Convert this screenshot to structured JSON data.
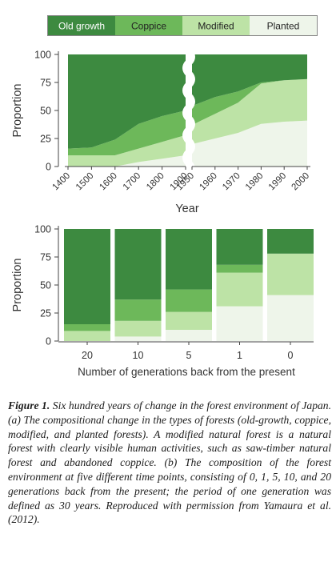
{
  "colors": {
    "old_growth": "#3d8a40",
    "coppice": "#6db85a",
    "modified": "#bde3a6",
    "planted": "#eef5ea",
    "axis": "#444444"
  },
  "legend": [
    "Old growth",
    "Coppice",
    "Modified",
    "Planted"
  ],
  "chart_data": [
    {
      "type": "area",
      "stacked": true,
      "x_left": [
        "1400",
        "1500",
        "1600",
        "1700",
        "1800",
        "1900"
      ],
      "x_right": [
        "1950",
        "1960",
        "1970",
        "1980",
        "1990",
        "2000"
      ],
      "axis_break": true,
      "xlabel": "Year",
      "ylabel": "Proportion",
      "ylim": [
        0,
        100
      ],
      "yticks": [
        0,
        25,
        50,
        75,
        100
      ],
      "series": [
        {
          "name": "Planted",
          "left": [
            0,
            0,
            0,
            4,
            7,
            10
          ],
          "right": [
            20,
            25,
            30,
            38,
            40,
            41
          ]
        },
        {
          "name": "Modified",
          "left": [
            10,
            10,
            10,
            12,
            15,
            18
          ],
          "right": [
            17,
            22,
            27,
            36,
            37,
            37
          ]
        },
        {
          "name": "Coppice",
          "left": [
            6,
            7,
            14,
            22,
            23,
            22
          ],
          "right": [
            17,
            15,
            10,
            1,
            0,
            0
          ]
        },
        {
          "name": "Old growth",
          "left": [
            84,
            83,
            76,
            62,
            55,
            50
          ],
          "right": [
            46,
            38,
            33,
            25,
            23,
            22
          ]
        }
      ]
    },
    {
      "type": "bar",
      "stacked": true,
      "categories": [
        "20",
        "10",
        "5",
        "1",
        "0"
      ],
      "xlabel": "Number of generations back from the present",
      "ylabel": "Proportion",
      "ylim": [
        0,
        100
      ],
      "yticks": [
        0,
        25,
        50,
        75,
        100
      ],
      "series": [
        {
          "name": "Planted",
          "values": [
            0,
            4,
            10,
            31,
            41
          ]
        },
        {
          "name": "Modified",
          "values": [
            9,
            14,
            16,
            30,
            37
          ]
        },
        {
          "name": "Coppice",
          "values": [
            6,
            19,
            20,
            7,
            0
          ]
        },
        {
          "name": "Old growth",
          "values": [
            85,
            63,
            54,
            32,
            22
          ]
        }
      ]
    }
  ],
  "caption": {
    "lead": "Figure 1.",
    "text": " Six hundred years of change in the forest environment of Japan. (a) The compositional change in the types of forests (old-growth, coppice, modified, and planted forests). A modified natural forest is a natural forest with clearly visible human activities, such as saw-timber natural forest and abandoned coppice. (b) The composition of the forest environment at five different time points, consisting of 0, 1, 5, 10, and 20 generations back from the present; the period of one generation was defined as 30 years. Reproduced with permission from Yamaura et al. (2012)."
  }
}
